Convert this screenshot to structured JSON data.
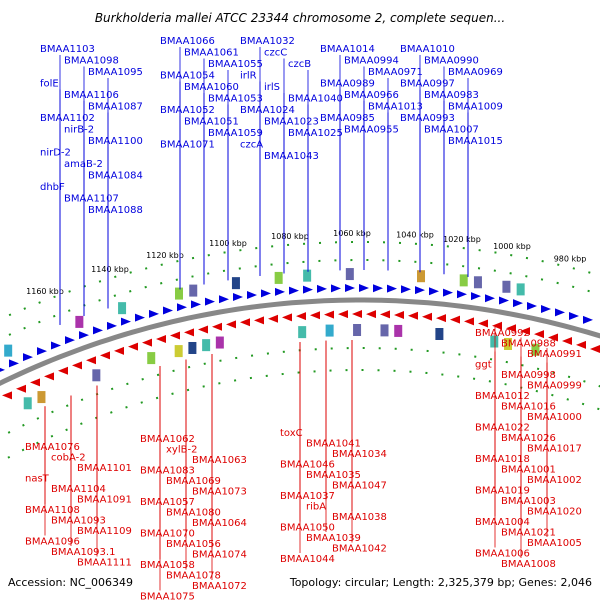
{
  "title": "Burkholderia mallei ATCC 23344 chromosome 2, complete sequen...",
  "footer": {
    "accession": "Accession: NC_006349",
    "topology": "Topology: circular; Length: 2,325,379 bp; Genes: 2,046"
  },
  "colors": {
    "forward": "#0000dd",
    "reverse": "#dd0000",
    "backbone": "#888888",
    "tick_dot": "#229922"
  },
  "ticks": [
    "1160 kbp",
    "1140 kbp",
    "1120 kbp",
    "1100 kbp",
    "1080 kbp",
    "1060 kbp",
    "1040 kbp",
    "1020 kbp",
    "1000 kbp",
    "980 kbp"
  ],
  "top_labels": [
    "BMAA1103",
    "BMAA1098",
    "BMAA1095",
    "folE",
    "BMAA1106",
    "BMAA1087",
    "BMAA1102",
    "nirB-2",
    "BMAA1100",
    "nirD-2",
    "amaB-2",
    "BMAA1084",
    "dhbF",
    "BMAA1107",
    "BMAA1088",
    "BMAA1066",
    "BMAA1061",
    "BMAA1055",
    "BMAA1054",
    "BMAA1060",
    "BMAA1053",
    "BMAA1052",
    "BMAA1051",
    "BMAA1059",
    "BMAA1071",
    "BMAA1032",
    "czcC",
    "czcB",
    "irlR",
    "irlS",
    "BMAA1040",
    "BMAA1024",
    "BMAA1023",
    "BMAA1025",
    "czcA",
    "BMAA1043",
    "BMAA1014",
    "BMAA0994",
    "BMAA0971",
    "BMAA0989",
    "BMAA0966",
    "BMAA1013",
    "BMAA0985",
    "BMAA0955",
    "BMAA1010",
    "BMAA0990",
    "BMAA0969",
    "BMAA0997",
    "BMAA0983",
    "BMAA1009",
    "BMAA0993",
    "BMAA1007",
    "BMAA1015"
  ],
  "bottom_labels": [
    "BMAA0992",
    "BMAA0988",
    "BMAA0991",
    "ggt",
    "BMAA0998",
    "BMAA0999",
    "BMAA1012",
    "BMAA1016",
    "BMAA1000",
    "BMAA1022",
    "BMAA1026",
    "BMAA1017",
    "BMAA1018",
    "BMAA1001",
    "BMAA1002",
    "BMAA1019",
    "BMAA1003",
    "BMAA1020",
    "BMAA1004",
    "BMAA1021",
    "BMAA1005",
    "BMAA1006",
    "BMAA1008",
    "toxC",
    "BMAA1041",
    "BMAA1034",
    "BMAA1046",
    "BMAA1035",
    "BMAA1047",
    "BMAA1037",
    "ribA",
    "BMAA1038",
    "BMAA1050",
    "BMAA1039",
    "BMAA1042",
    "BMAA1044",
    "BMAA1062",
    "xylB-2",
    "BMAA1063",
    "BMAA1083",
    "BMAA1069",
    "BMAA1073",
    "BMAA1057",
    "BMAA1080",
    "BMAA1064",
    "BMAA1070",
    "BMAA1056",
    "BMAA1074",
    "BMAA1058",
    "BMAA1078",
    "BMAA1072",
    "BMAA1075",
    "BMAA1076",
    "cobA-2",
    "BMAA1101",
    "nasT",
    "BMAA1104",
    "BMAA1091",
    "BMAA1108",
    "BMAA1093",
    "BMAA1109",
    "BMAA1096",
    "BMAA1093.1",
    "BMAA1111"
  ]
}
